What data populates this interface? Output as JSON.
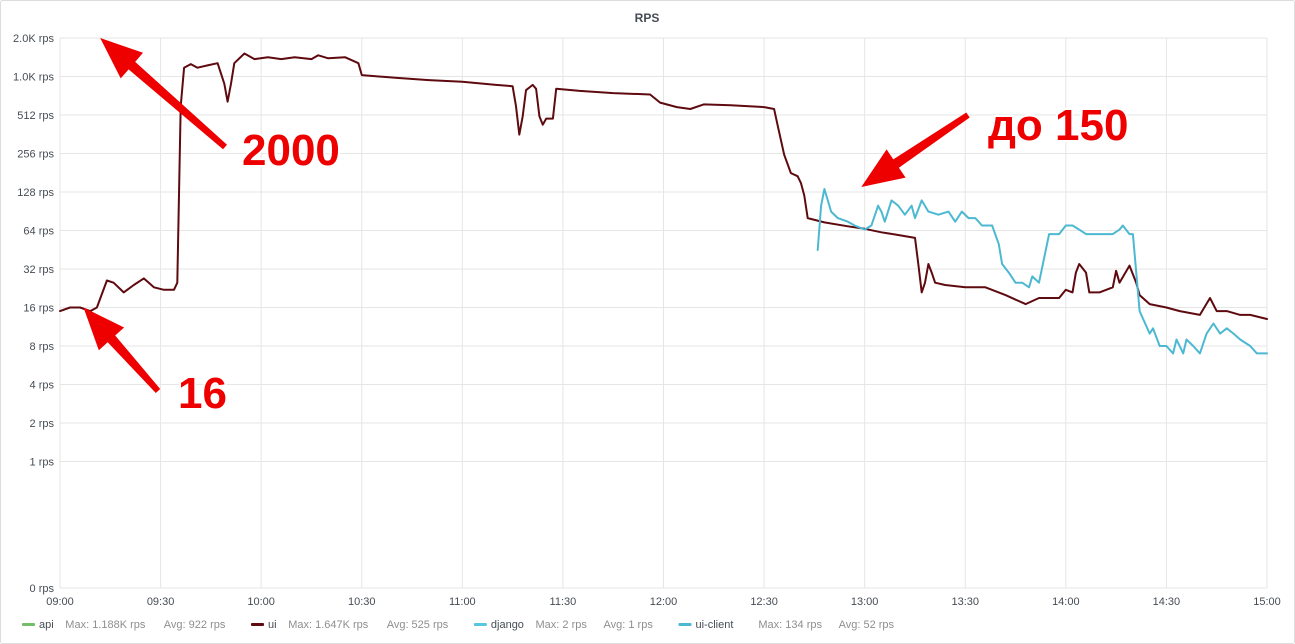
{
  "chart_data": {
    "type": "line",
    "title": "RPS",
    "y_scale": "log2",
    "y_ticks": [
      "0 rps",
      "1 rps",
      "2 rps",
      "4 rps",
      "8 rps",
      "16 rps",
      "32 rps",
      "64 rps",
      "128 rps",
      "256 rps",
      "512 rps",
      "1.0K rps",
      "2.0K rps"
    ],
    "x_ticks": [
      "09:00",
      "09:30",
      "10:00",
      "10:30",
      "11:00",
      "11:30",
      "12:00",
      "12:30",
      "13:00",
      "13:30",
      "14:00",
      "14:30",
      "15:00"
    ],
    "xlim": [
      "09:00",
      "15:00"
    ],
    "ylim": [
      0,
      2048
    ],
    "grid": true,
    "legend_position": "bottom",
    "series": [
      {
        "name": "api",
        "color": "#73bf69",
        "max": "Max: 1.188K rps",
        "avg": "Avg: 922 rps",
        "points": []
      },
      {
        "name": "ui",
        "color": "#5e0a0f",
        "max": "Max: 1.647K rps",
        "avg": "Avg: 525 rps",
        "points": [
          [
            "09:00",
            15
          ],
          [
            "09:03",
            16
          ],
          [
            "09:06",
            16
          ],
          [
            "09:09",
            15
          ],
          [
            "09:11",
            16
          ],
          [
            "09:14",
            26
          ],
          [
            "09:16",
            25
          ],
          [
            "09:19",
            21
          ],
          [
            "09:22",
            24
          ],
          [
            "09:25",
            27
          ],
          [
            "09:28",
            23
          ],
          [
            "09:31",
            22
          ],
          [
            "09:34",
            22
          ],
          [
            "09:35",
            25
          ],
          [
            "09:36",
            600
          ],
          [
            "09:37",
            1200
          ],
          [
            "09:39",
            1280
          ],
          [
            "09:41",
            1200
          ],
          [
            "09:44",
            1250
          ],
          [
            "09:47",
            1300
          ],
          [
            "09:49",
            900
          ],
          [
            "09:50",
            650
          ],
          [
            "09:51",
            900
          ],
          [
            "09:52",
            1300
          ],
          [
            "09:55",
            1550
          ],
          [
            "09:58",
            1400
          ],
          [
            "10:02",
            1450
          ],
          [
            "10:06",
            1400
          ],
          [
            "10:10",
            1450
          ],
          [
            "10:15",
            1400
          ],
          [
            "10:17",
            1500
          ],
          [
            "10:20",
            1420
          ],
          [
            "10:25",
            1450
          ],
          [
            "10:29",
            1300
          ],
          [
            "10:30",
            1050
          ],
          [
            "10:40",
            1000
          ],
          [
            "10:50",
            960
          ],
          [
            "11:00",
            930
          ],
          [
            "11:10",
            880
          ],
          [
            "11:15",
            860
          ],
          [
            "11:16",
            600
          ],
          [
            "11:17",
            360
          ],
          [
            "11:18",
            500
          ],
          [
            "11:19",
            800
          ],
          [
            "11:21",
            880
          ],
          [
            "11:22",
            820
          ],
          [
            "11:23",
            500
          ],
          [
            "11:24",
            430
          ],
          [
            "11:25",
            480
          ],
          [
            "11:27",
            480
          ],
          [
            "11:28",
            820
          ],
          [
            "11:35",
            790
          ],
          [
            "11:45",
            760
          ],
          [
            "11:56",
            740
          ],
          [
            "11:59",
            640
          ],
          [
            "12:04",
            590
          ],
          [
            "12:08",
            570
          ],
          [
            "12:12",
            620
          ],
          [
            "12:20",
            610
          ],
          [
            "12:30",
            590
          ],
          [
            "12:33",
            570
          ],
          [
            "12:34",
            430
          ],
          [
            "12:36",
            250
          ],
          [
            "12:38",
            180
          ],
          [
            "12:40",
            170
          ],
          [
            "12:41",
            150
          ],
          [
            "12:42",
            120
          ],
          [
            "12:43",
            80
          ],
          [
            "12:48",
            74
          ],
          [
            "12:55",
            69
          ],
          [
            "13:00",
            66
          ],
          [
            "13:05",
            62
          ],
          [
            "13:10",
            59
          ],
          [
            "13:15",
            56
          ],
          [
            "13:16",
            35
          ],
          [
            "13:17",
            21
          ],
          [
            "13:18",
            25
          ],
          [
            "13:19",
            35
          ],
          [
            "13:20",
            30
          ],
          [
            "13:21",
            25
          ],
          [
            "13:24",
            24
          ],
          [
            "13:30",
            23
          ],
          [
            "13:36",
            23
          ],
          [
            "13:42",
            20
          ],
          [
            "13:48",
            17
          ],
          [
            "13:52",
            19
          ],
          [
            "13:58",
            19
          ],
          [
            "14:00",
            22
          ],
          [
            "14:02",
            21
          ],
          [
            "14:03",
            30
          ],
          [
            "14:04",
            35
          ],
          [
            "14:06",
            30
          ],
          [
            "14:07",
            21
          ],
          [
            "14:10",
            21
          ],
          [
            "14:14",
            23
          ],
          [
            "14:15",
            31
          ],
          [
            "14:16",
            25
          ],
          [
            "14:19",
            34
          ],
          [
            "14:21",
            25
          ],
          [
            "14:22",
            20
          ],
          [
            "14:25",
            17
          ],
          [
            "14:30",
            16
          ],
          [
            "14:34",
            15
          ],
          [
            "14:40",
            14
          ],
          [
            "14:43",
            19
          ],
          [
            "14:45",
            15
          ],
          [
            "14:48",
            15
          ],
          [
            "14:52",
            14
          ],
          [
            "14:55",
            14
          ],
          [
            "15:00",
            13
          ]
        ]
      },
      {
        "name": "django",
        "color": "#56c7dc",
        "max": "Max: 2 rps",
        "avg": "Avg: 1 rps",
        "points": []
      },
      {
        "name": "ui-client",
        "color": "#4db8d1",
        "max": "Max: 134 rps",
        "avg": "Avg: 52 rps",
        "points": [
          [
            "12:46",
            45
          ],
          [
            "12:47",
            100
          ],
          [
            "12:48",
            135
          ],
          [
            "12:49",
            110
          ],
          [
            "12:50",
            90
          ],
          [
            "12:52",
            80
          ],
          [
            "12:55",
            75
          ],
          [
            "12:57",
            70
          ],
          [
            "13:00",
            65
          ],
          [
            "13:02",
            70
          ],
          [
            "13:04",
            100
          ],
          [
            "13:05",
            90
          ],
          [
            "13:06",
            75
          ],
          [
            "13:08",
            110
          ],
          [
            "13:10",
            100
          ],
          [
            "13:12",
            85
          ],
          [
            "13:14",
            100
          ],
          [
            "13:15",
            80
          ],
          [
            "13:17",
            110
          ],
          [
            "13:19",
            90
          ],
          [
            "13:22",
            85
          ],
          [
            "13:25",
            90
          ],
          [
            "13:27",
            75
          ],
          [
            "13:29",
            90
          ],
          [
            "13:31",
            80
          ],
          [
            "13:33",
            80
          ],
          [
            "13:35",
            70
          ],
          [
            "13:38",
            70
          ],
          [
            "13:40",
            50
          ],
          [
            "13:41",
            35
          ],
          [
            "13:43",
            30
          ],
          [
            "13:45",
            25
          ],
          [
            "13:47",
            25
          ],
          [
            "13:49",
            23
          ],
          [
            "13:50",
            28
          ],
          [
            "13:52",
            25
          ],
          [
            "13:55",
            60
          ],
          [
            "13:58",
            60
          ],
          [
            "14:00",
            70
          ],
          [
            "14:02",
            70
          ],
          [
            "14:04",
            65
          ],
          [
            "14:06",
            60
          ],
          [
            "14:09",
            60
          ],
          [
            "14:12",
            60
          ],
          [
            "14:14",
            60
          ],
          [
            "14:16",
            65
          ],
          [
            "14:17",
            70
          ],
          [
            "14:19",
            60
          ],
          [
            "14:20",
            60
          ],
          [
            "14:22",
            15
          ],
          [
            "14:25",
            10
          ],
          [
            "14:26",
            11
          ],
          [
            "14:28",
            8
          ],
          [
            "14:30",
            8
          ],
          [
            "14:32",
            7
          ],
          [
            "14:33",
            9
          ],
          [
            "14:35",
            7
          ],
          [
            "14:36",
            9
          ],
          [
            "14:38",
            8
          ],
          [
            "14:40",
            7
          ],
          [
            "14:42",
            10
          ],
          [
            "14:44",
            12
          ],
          [
            "14:46",
            10
          ],
          [
            "14:48",
            11
          ],
          [
            "14:50",
            10
          ],
          [
            "14:52",
            9
          ],
          [
            "14:55",
            8
          ],
          [
            "14:57",
            7
          ],
          [
            "15:00",
            7
          ]
        ]
      }
    ],
    "annotations": [
      {
        "text": "2000",
        "target": [
          "09:12",
          2048
        ]
      },
      {
        "text": "16",
        "target": [
          "09:07",
          16
        ]
      },
      {
        "text": "до 150",
        "target": [
          "12:59",
          140
        ]
      }
    ]
  },
  "colors": {
    "annotation": "#ee0000",
    "grid": "#e6e6e6",
    "text": "#464c54"
  }
}
